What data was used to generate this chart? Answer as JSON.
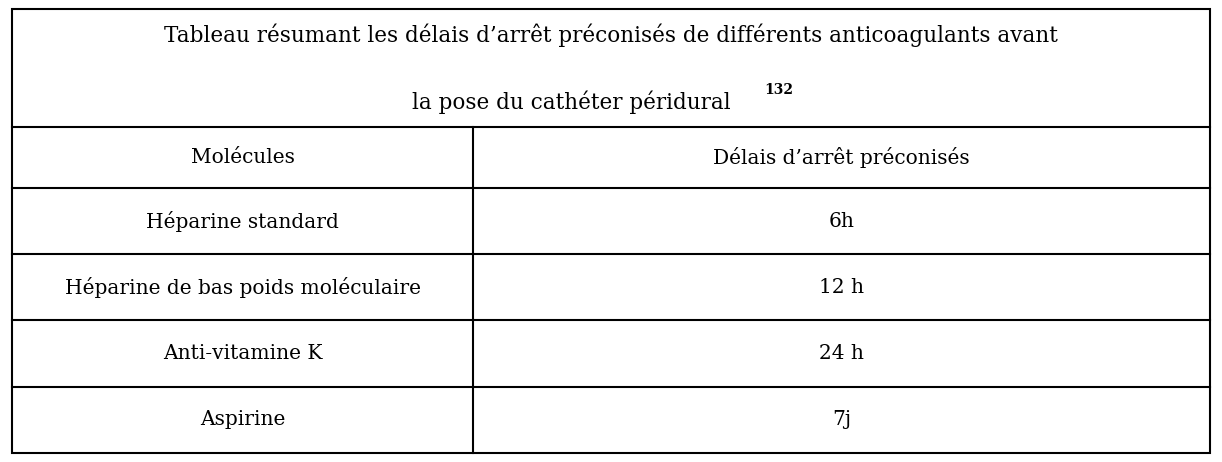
{
  "title_line1": "Tableau résumant les délais d’arrêt préconisés de différents anticoagulants avant",
  "title_line2": "la pose du cathéter péridural ",
  "title_superscript": "132",
  "col_headers": [
    "Molécules",
    "Délais d’arrêt préconisés"
  ],
  "rows": [
    [
      "Héparine standard",
      "6h"
    ],
    [
      "Héparine de bas poids moléculaire",
      "12 h"
    ],
    [
      "Anti-vitamine K",
      "24 h"
    ],
    [
      "Aspirine",
      "7j"
    ]
  ],
  "bg_color": "#ffffff",
  "border_color": "#000000",
  "text_color": "#000000",
  "figsize": [
    12.22,
    4.62
  ],
  "dpi": 100,
  "col_split": 0.385,
  "title_fontsize": 15.5,
  "header_fontsize": 14.5,
  "cell_fontsize": 14.5,
  "superscript_fontsize": 10
}
